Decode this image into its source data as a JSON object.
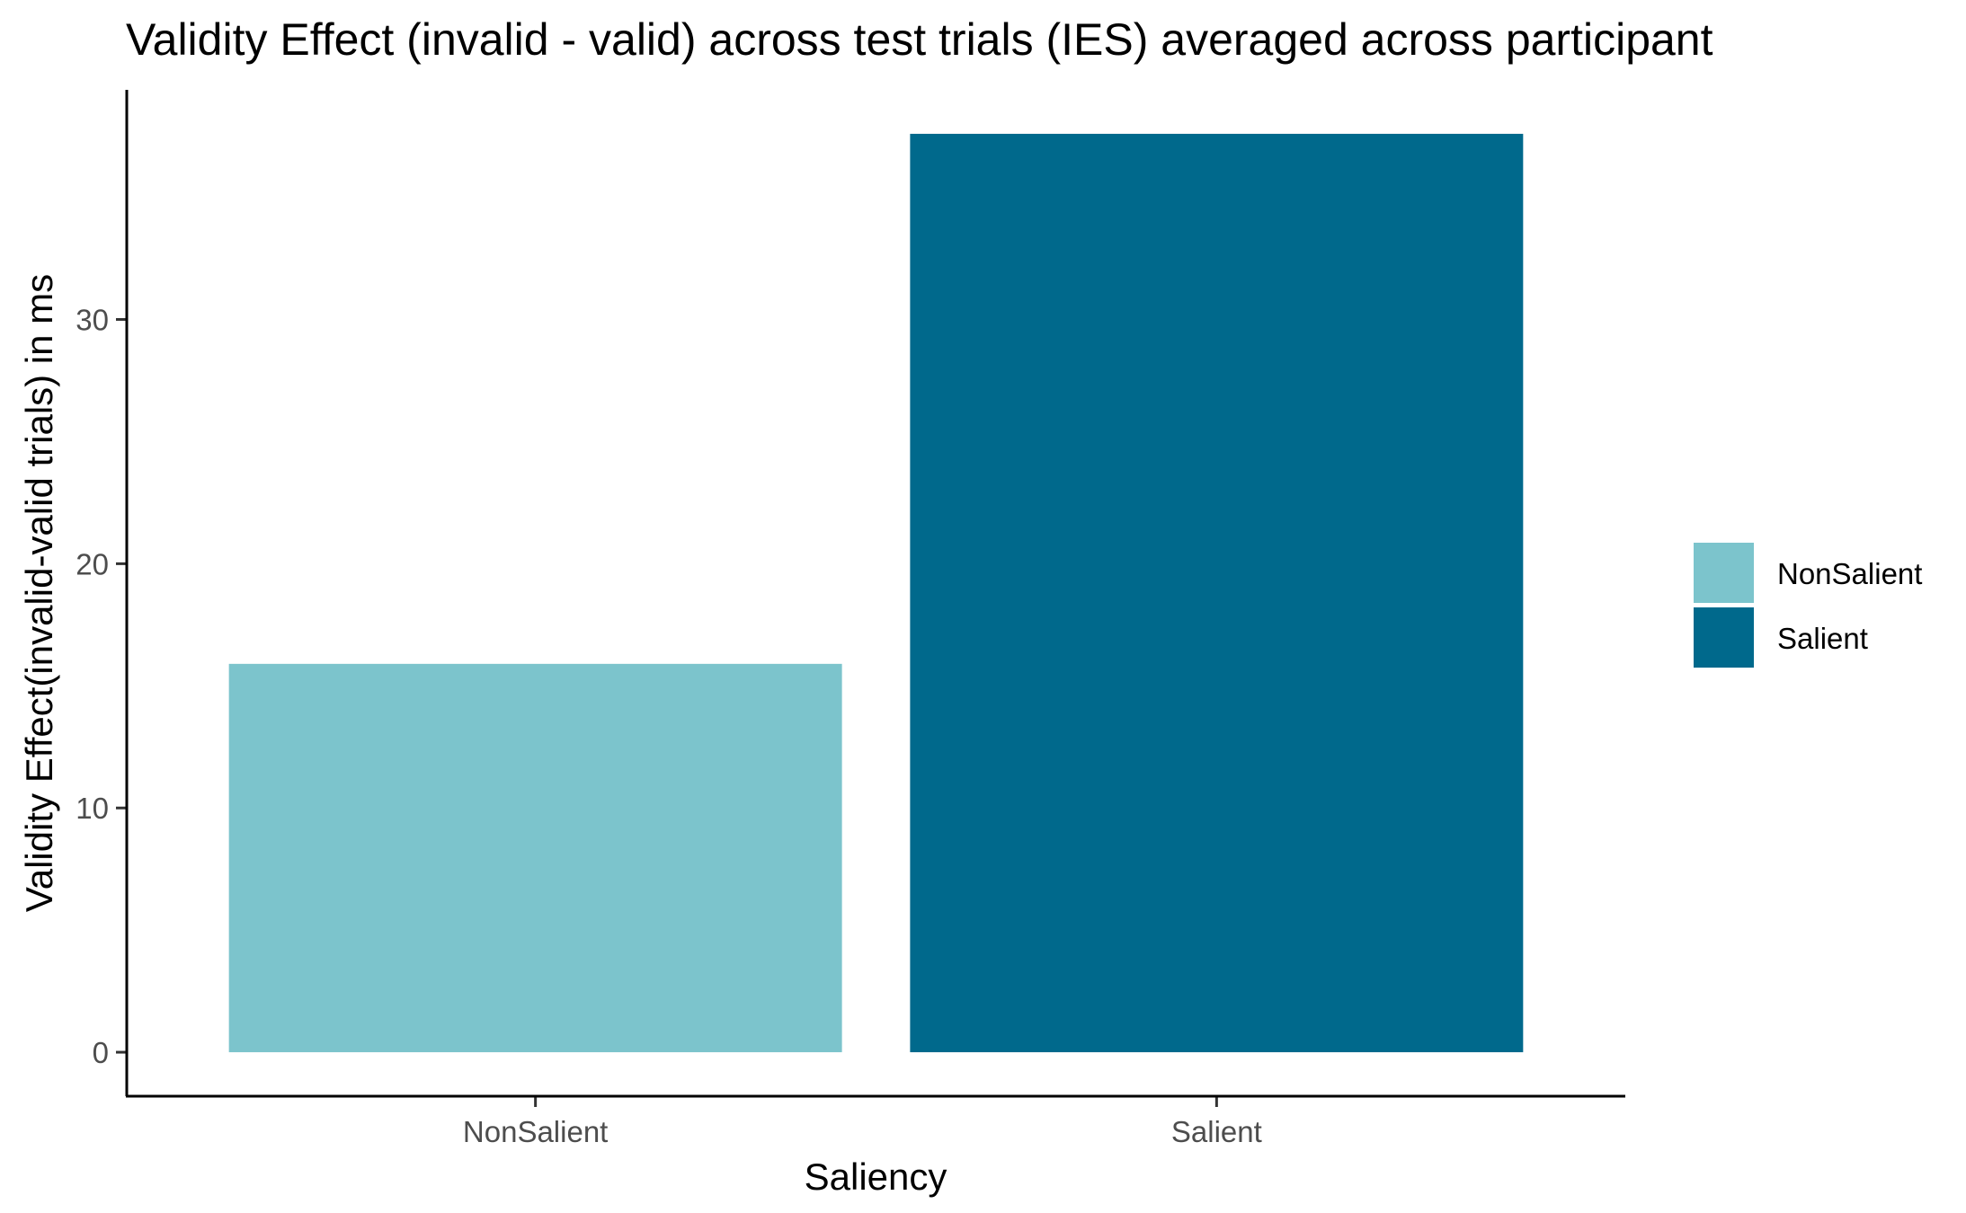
{
  "chart_data": {
    "type": "bar",
    "title": "Validity Effect (invalid - valid) across test trials (IES) averaged across participant",
    "xlabel": "Saliency",
    "ylabel": "Validity Effect(invalid-valid trials) in ms",
    "categories": [
      "NonSalient",
      "Salient"
    ],
    "values": [
      15.9,
      37.6
    ],
    "colors": [
      "#7cc4cc",
      "#00698c"
    ],
    "ylim": [
      -1.8,
      39.4
    ],
    "yticks": [
      0,
      10,
      20,
      30
    ],
    "ytick_labels": [
      "0",
      "10",
      "20",
      "30"
    ],
    "grid": false,
    "legend": {
      "position": "right",
      "entries": [
        {
          "label": "NonSalient",
          "color": "#7cc4cc"
        },
        {
          "label": "Salient",
          "color": "#00698c"
        }
      ]
    }
  }
}
